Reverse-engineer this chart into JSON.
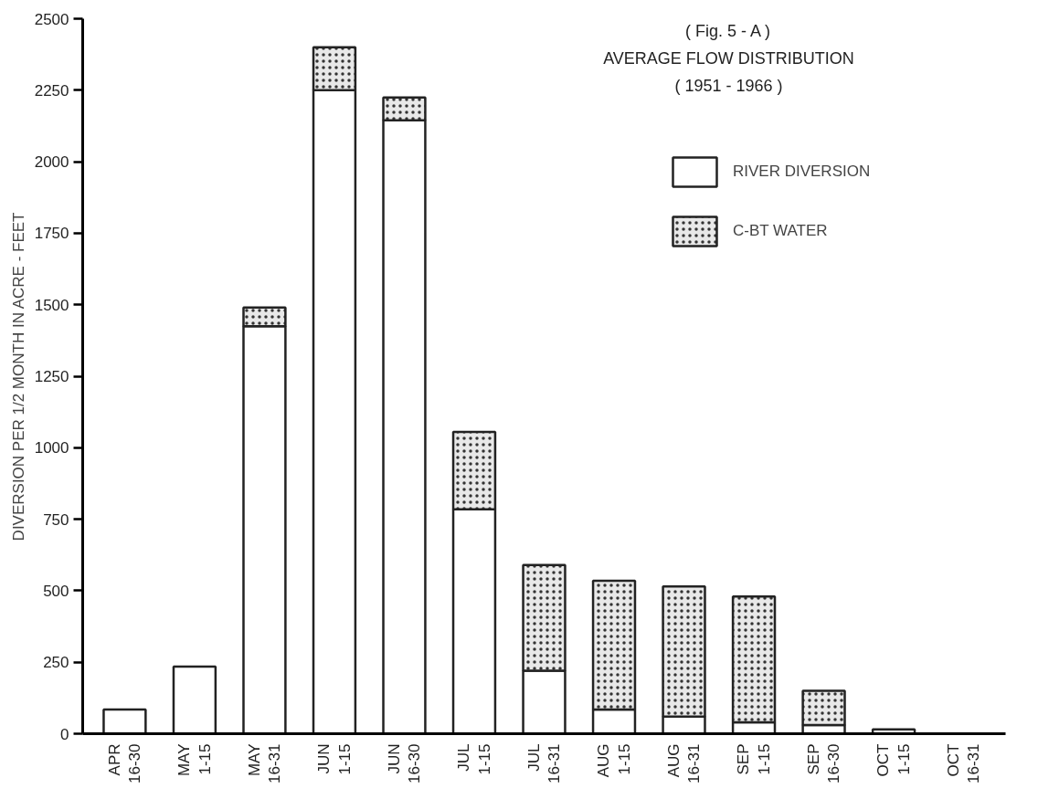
{
  "chart_data": {
    "type": "bar",
    "stacked": true,
    "title": "( Fig. 5 - A )",
    "subtitle": "AVERAGE FLOW DISTRIBUTION\n( 1951 - 1966 )",
    "ylabel": "DIVERSION PER 1/2 MONTH IN ACRE - FEET",
    "categories": [
      "APR\n16-30",
      "MAY\n1-15",
      "MAY\n16-31",
      "JUN\n1-15",
      "JUN\n16-30",
      "JUL\n1-15",
      "JUL\n16-31",
      "AUG\n1-15",
      "AUG\n16-31",
      "SEP\n1-15",
      "SEP\n16-30",
      "OCT\n1-15",
      "OCT\n16-31"
    ],
    "series": [
      {
        "name": "RIVER DIVERSION",
        "color": "#ffffff",
        "values": [
          85,
          235,
          1425,
          2250,
          2145,
          785,
          220,
          85,
          60,
          40,
          30,
          15,
          null
        ]
      },
      {
        "name": "C-BT WATER",
        "color": "#e8e8e8",
        "values": [
          null,
          null,
          65,
          150,
          80,
          270,
          370,
          450,
          455,
          440,
          120,
          null,
          null
        ]
      }
    ],
    "ylim": [
      0,
      2500
    ],
    "yticks": [
      0,
      250,
      500,
      750,
      1000,
      1250,
      1500,
      1750,
      2000,
      2250,
      2500
    ],
    "grid": false,
    "legend": "top right"
  }
}
